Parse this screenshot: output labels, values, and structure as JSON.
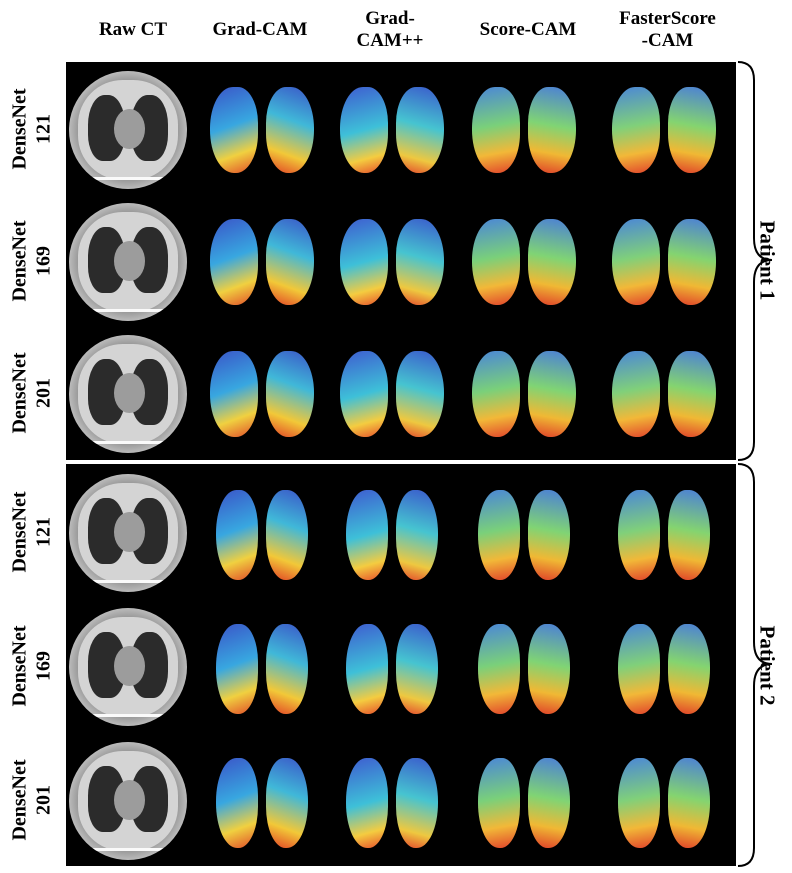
{
  "columns": [
    "Raw CT",
    "Grad-CAM",
    "Grad-\nCAM++",
    "Score-CAM",
    "FasterScore\n-CAM"
  ],
  "rows": [
    "DenseNet\n121",
    "DenseNet\n169",
    "DenseNet\n201",
    "DenseNet\n121",
    "DenseNet\n169",
    "DenseNet\n201"
  ],
  "patients": [
    "Patient 1",
    "Patient 2"
  ]
}
